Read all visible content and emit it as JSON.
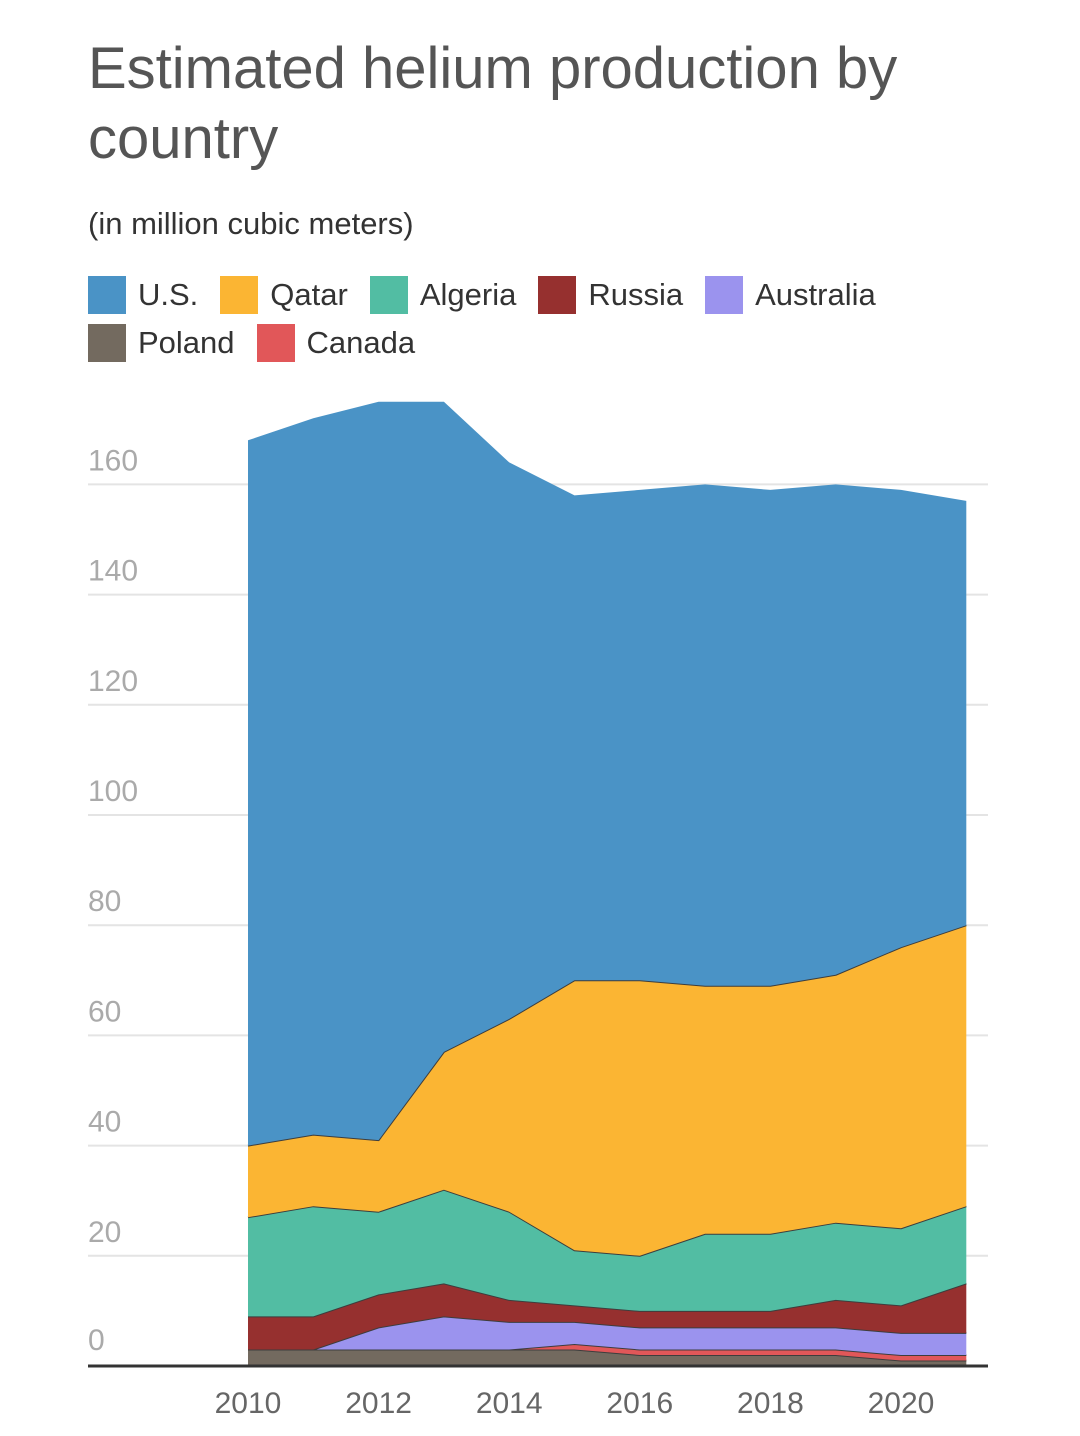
{
  "chart_data": {
    "type": "area",
    "stacked": true,
    "title": "Estimated helium production by country",
    "subtitle": "(in million cubic meters)",
    "xlabel": "",
    "ylabel": "",
    "ylim": [
      0,
      175
    ],
    "x": [
      2010,
      2011,
      2012,
      2013,
      2014,
      2015,
      2016,
      2017,
      2018,
      2019,
      2020,
      2021
    ],
    "x_ticks": [
      "2010",
      "2012",
      "2014",
      "2016",
      "2018",
      "2020"
    ],
    "y_ticks": [
      "0",
      "20",
      "40",
      "60",
      "80",
      "100",
      "120",
      "140",
      "160"
    ],
    "legend_position": "top",
    "series": [
      {
        "name": "Poland",
        "color": "#736a5f",
        "values": [
          3,
          3,
          3,
          3,
          3,
          3,
          2,
          2,
          2,
          2,
          1,
          1
        ]
      },
      {
        "name": "Canada",
        "color": "#e15759",
        "values": [
          0,
          0,
          0,
          0,
          0,
          1,
          1,
          1,
          1,
          1,
          1,
          1
        ]
      },
      {
        "name": "Australia",
        "color": "#9b93ee",
        "values": [
          0,
          0,
          4,
          6,
          5,
          4,
          4,
          4,
          4,
          4,
          4,
          4
        ]
      },
      {
        "name": "Russia",
        "color": "#96302f",
        "values": [
          6,
          6,
          6,
          6,
          4,
          3,
          3,
          3,
          3,
          5,
          5,
          9
        ]
      },
      {
        "name": "Algeria",
        "color": "#52bda3",
        "values": [
          18,
          20,
          15,
          17,
          16,
          10,
          10,
          14,
          14,
          14,
          14,
          14
        ]
      },
      {
        "name": "Qatar",
        "color": "#fbb533",
        "values": [
          13,
          13,
          13,
          25,
          35,
          49,
          50,
          45,
          45,
          45,
          51,
          51
        ]
      },
      {
        "name": "U.S.",
        "color": "#4a93c6",
        "values": [
          128,
          130,
          134,
          118,
          101,
          88,
          89,
          91,
          90,
          89,
          83,
          77
        ]
      }
    ]
  },
  "legend_order": [
    "U.S.",
    "Qatar",
    "Algeria",
    "Russia",
    "Australia",
    "Poland",
    "Canada"
  ]
}
